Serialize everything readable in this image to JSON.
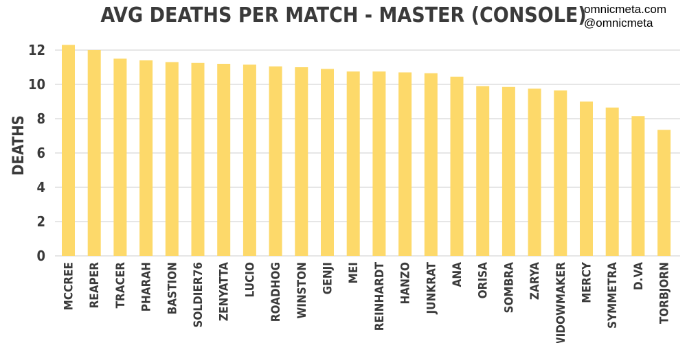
{
  "credit": {
    "line1": "omnicmeta.com",
    "line2": "@omnicmeta"
  },
  "colors": {
    "bar": "#FDD96A",
    "grid": "#cccccc",
    "text": "#3a3a3a"
  },
  "chart_data": {
    "type": "bar",
    "title": "AVG DEATHS PER MATCH - MASTER (CONSOLE)",
    "xlabel": "",
    "ylabel": "DEATHS",
    "ylim": [
      0,
      13
    ],
    "yticks": [
      0,
      2,
      4,
      6,
      8,
      10,
      12
    ],
    "grid": true,
    "categories": [
      "MCCREE",
      "REAPER",
      "TRACER",
      "PHARAH",
      "BASTION",
      "SOLDIER76",
      "ZENYATTA",
      "LUCIO",
      "ROADHOG",
      "WINSTON",
      "GENJI",
      "MEI",
      "REINHARDT",
      "HANZO",
      "JUNKRAT",
      "ANA",
      "ORISA",
      "SOMBRA",
      "ZARYA",
      "WIDOWMAKER",
      "MERCY",
      "SYMMETRA",
      "D.VA",
      "TORBJORN"
    ],
    "values": [
      12.3,
      12.0,
      11.5,
      11.4,
      11.3,
      11.25,
      11.2,
      11.15,
      11.05,
      11.0,
      10.9,
      10.75,
      10.75,
      10.7,
      10.65,
      10.45,
      9.9,
      9.85,
      9.75,
      9.65,
      9.0,
      8.65,
      8.15,
      7.35
    ]
  }
}
